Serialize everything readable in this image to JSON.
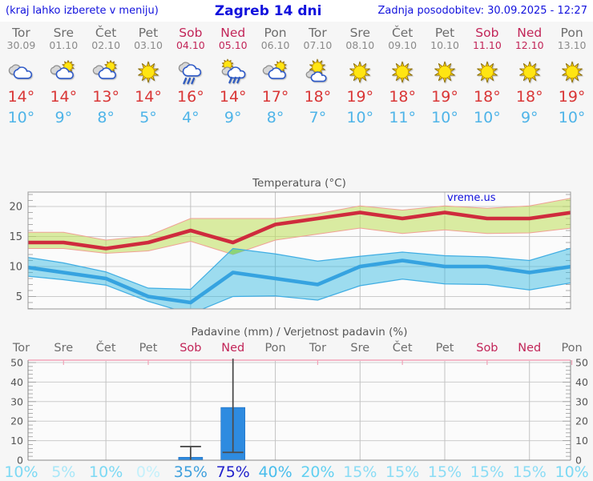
{
  "header": {
    "hint": "(kraj lahko izberete v meniju)",
    "title": "Zagreb 14 dni",
    "updated": "Zadnja posodobitev: 30.09.2025 - 12:27"
  },
  "watermark": "vreme.us",
  "colors": {
    "link_blue": "#1212dd",
    "high_temp_red": "#d93636",
    "low_temp_blue": "#4fb4e8",
    "weekend_crimson": "#c22558",
    "weekday_gray": "#6d6d6d",
    "bar_blue": "#2e8be0",
    "max_line": "#cf2b3d",
    "min_line": "#36a3e0",
    "max_band": "#d9eba1",
    "min_band": "#9fdef1",
    "band_overlap_green": "#8bd478"
  },
  "forecast": {
    "days": [
      {
        "name": "Tor",
        "date": "30.09",
        "weekend": false,
        "icon": "cloudy",
        "high": "14°",
        "low": "10°"
      },
      {
        "name": "Sre",
        "date": "01.10",
        "weekend": false,
        "icon": "partly-cloudy",
        "high": "14°",
        "low": "9°"
      },
      {
        "name": "Čet",
        "date": "02.10",
        "weekend": false,
        "icon": "partly-cloudy",
        "high": "13°",
        "low": "8°"
      },
      {
        "name": "Pet",
        "date": "03.10",
        "weekend": false,
        "icon": "sunny",
        "high": "14°",
        "low": "5°"
      },
      {
        "name": "Sob",
        "date": "04.10",
        "weekend": true,
        "icon": "rain",
        "high": "16°",
        "low": "4°"
      },
      {
        "name": "Ned",
        "date": "05.10",
        "weekend": true,
        "icon": "sun-rain",
        "high": "14°",
        "low": "9°"
      },
      {
        "name": "Pon",
        "date": "06.10",
        "weekend": false,
        "icon": "partly-cloudy",
        "high": "17°",
        "low": "8°"
      },
      {
        "name": "Tor",
        "date": "07.10",
        "weekend": false,
        "icon": "mostly-sunny",
        "high": "18°",
        "low": "7°"
      },
      {
        "name": "Sre",
        "date": "08.10",
        "weekend": false,
        "icon": "sunny",
        "high": "19°",
        "low": "10°"
      },
      {
        "name": "Čet",
        "date": "09.10",
        "weekend": false,
        "icon": "sunny",
        "high": "18°",
        "low": "11°"
      },
      {
        "name": "Pet",
        "date": "10.10",
        "weekend": false,
        "icon": "sunny",
        "high": "19°",
        "low": "10°"
      },
      {
        "name": "Sob",
        "date": "11.10",
        "weekend": true,
        "icon": "sunny",
        "high": "18°",
        "low": "10°"
      },
      {
        "name": "Ned",
        "date": "12.10",
        "weekend": true,
        "icon": "sunny",
        "high": "18°",
        "low": "9°"
      },
      {
        "name": "Pon",
        "date": "13.10",
        "weekend": false,
        "icon": "sunny",
        "high": "19°",
        "low": "10°"
      }
    ]
  },
  "chart_data": [
    {
      "type": "area",
      "title": "Temperatura (°C)",
      "x_labels": [
        "Tor",
        "Sre",
        "Čet",
        "Pet",
        "Sob",
        "Ned",
        "Pon",
        "Tor",
        "Sre",
        "Čet",
        "Pet",
        "Sob",
        "Ned",
        "Pon"
      ],
      "ylim": [
        2.9,
        22.4
      ],
      "yticks": [
        5,
        10,
        15,
        20
      ],
      "grid": true,
      "series": [
        {
          "name": "max",
          "values": [
            14,
            14,
            13,
            14,
            16,
            14,
            17,
            18,
            19,
            18,
            19,
            18,
            18,
            19
          ]
        },
        {
          "name": "max_band_upper",
          "values": [
            15.7,
            15.7,
            14.4,
            15.1,
            18,
            18,
            18,
            18.8,
            20.1,
            19.4,
            20.1,
            19.7,
            20.1,
            21.4
          ]
        },
        {
          "name": "max_band_lower",
          "values": [
            13,
            13,
            12.2,
            12.6,
            14.2,
            12,
            14.4,
            15.4,
            16.4,
            15.5,
            16.1,
            15.5,
            15.6,
            16.4
          ]
        },
        {
          "name": "min",
          "values": [
            10,
            9,
            8,
            5,
            4,
            9,
            8,
            7,
            10,
            11,
            10,
            10,
            9,
            10
          ]
        },
        {
          "name": "min_band_upper",
          "values": [
            11.7,
            10.6,
            9.1,
            6.4,
            6.2,
            13,
            12.1,
            10.9,
            11.7,
            12.4,
            11.8,
            11.6,
            11,
            13.1
          ]
        },
        {
          "name": "min_band_lower",
          "values": [
            8.5,
            7.8,
            6.9,
            4.2,
            2.1,
            5,
            5.1,
            4.4,
            6.8,
            7.9,
            7.1,
            7,
            6.1,
            7.3
          ]
        }
      ]
    },
    {
      "type": "bar",
      "title": "Padavine (mm) / Verjetnost padavin (%)",
      "categories": [
        "Tor",
        "Sre",
        "Čet",
        "Pet",
        "Sob",
        "Ned",
        "Pon",
        "Tor",
        "Sre",
        "Čet",
        "Pet",
        "Sob",
        "Ned",
        "Pon"
      ],
      "weekend_indices": [
        4,
        5,
        11,
        12
      ],
      "values": [
        0,
        0,
        0,
        0,
        1.5,
        27,
        0,
        0,
        0,
        0,
        0,
        0,
        0,
        0
      ],
      "whiskers": [
        {
          "index": 4,
          "from": 0,
          "to": 7,
          "cap_top": true,
          "cap_bottom": false
        },
        {
          "index": 5,
          "from": 4,
          "to": 52,
          "cap_top": false,
          "cap_bottom": true
        }
      ],
      "probabilities": [
        "10%",
        "5%",
        "10%",
        "0%",
        "35%",
        "75%",
        "40%",
        "20%",
        "15%",
        "15%",
        "15%",
        "15%",
        "15%",
        "10%"
      ],
      "probability_colors": [
        "#7cd9f4",
        "#a8e7f8",
        "#7cd9f4",
        "#c4f0fb",
        "#3fa0dd",
        "#2222cc",
        "#48bdec",
        "#62d0f1",
        "#8adcf5",
        "#8adcf5",
        "#8adcf5",
        "#8adcf5",
        "#8adcf5",
        "#7cd9f4"
      ],
      "ylim": [
        0,
        52
      ],
      "yticks": [
        0,
        10,
        20,
        30,
        40,
        50
      ],
      "grid": true
    }
  ]
}
